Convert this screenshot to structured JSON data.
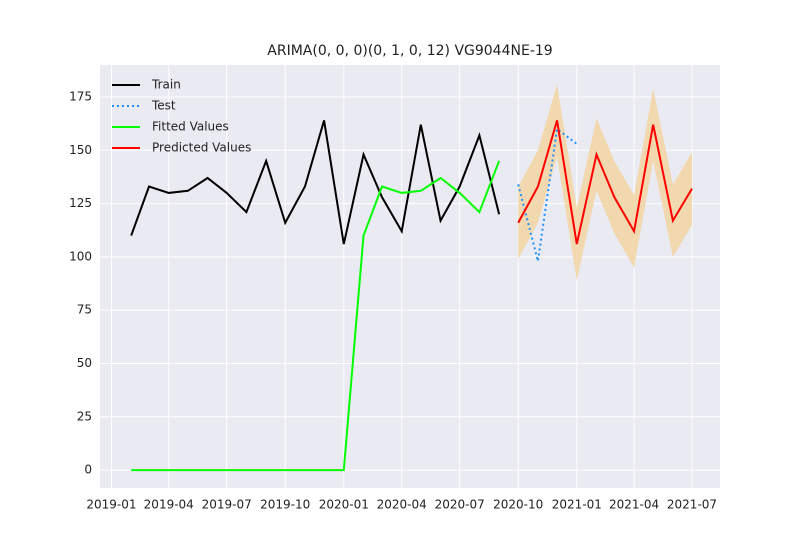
{
  "chart_data": {
    "type": "line",
    "title": "ARIMA(0, 0, 0)(0, 1, 0, 12) VG9044NE-19",
    "xlim": [
      "2018-12-14",
      "2021-08-14"
    ],
    "xticks": [
      "2019-01",
      "2019-04",
      "2019-07",
      "2019-10",
      "2020-01",
      "2020-04",
      "2020-07",
      "2020-10",
      "2021-01",
      "2021-04",
      "2021-07"
    ],
    "ylim": [
      -8.4,
      190
    ],
    "yticks": [
      0,
      25,
      50,
      75,
      100,
      125,
      150,
      175
    ],
    "grid": true,
    "legend": "upper-left",
    "series": [
      {
        "name": "Train",
        "color": "#000000",
        "style": "solid",
        "x": [
          "2019-02",
          "2019-03",
          "2019-04",
          "2019-05",
          "2019-06",
          "2019-07",
          "2019-08",
          "2019-09",
          "2019-10",
          "2019-11",
          "2019-12",
          "2020-01",
          "2020-02",
          "2020-03",
          "2020-04",
          "2020-05",
          "2020-06",
          "2020-07",
          "2020-08",
          "2020-09"
        ],
        "values": [
          110,
          133,
          130,
          131,
          137,
          130,
          121,
          145,
          116,
          133,
          164,
          106,
          148,
          128,
          112,
          162,
          117,
          133,
          157,
          120
        ]
      },
      {
        "name": "Test",
        "color": "#1e90ff",
        "style": "dotted",
        "x": [
          "2020-10",
          "2020-11",
          "2020-12",
          "2021-01"
        ],
        "values": [
          134,
          98,
          160,
          153
        ]
      },
      {
        "name": "Fitted Values",
        "color": "#00ff00",
        "style": "solid",
        "x": [
          "2019-02",
          "2019-03",
          "2019-04",
          "2019-05",
          "2019-06",
          "2019-07",
          "2019-08",
          "2019-09",
          "2019-10",
          "2019-11",
          "2019-12",
          "2020-01",
          "2020-02",
          "2020-03",
          "2020-04",
          "2020-05",
          "2020-06",
          "2020-07",
          "2020-08",
          "2020-09"
        ],
        "values": [
          0,
          0,
          0,
          0,
          0,
          0,
          0,
          0,
          0,
          0,
          0,
          0,
          110,
          133,
          130,
          131,
          137,
          130,
          121,
          145
        ]
      },
      {
        "name": "Predicted Values",
        "color": "#ff0000",
        "style": "solid",
        "x": [
          "2020-10",
          "2020-11",
          "2020-12",
          "2021-01",
          "2021-02",
          "2021-03",
          "2021-04",
          "2021-05",
          "2021-06",
          "2021-07"
        ],
        "values": [
          116,
          133,
          164,
          106,
          148,
          128,
          112,
          162,
          117,
          132
        ]
      }
    ],
    "confidence_interval": {
      "color": "#f3d6a6",
      "x": [
        "2020-10",
        "2020-11",
        "2020-12",
        "2021-01",
        "2021-02",
        "2021-03",
        "2021-04",
        "2021-05",
        "2021-06",
        "2021-07"
      ],
      "lower": [
        99,
        116,
        147,
        89,
        131,
        111,
        95,
        145,
        100,
        115
      ],
      "upper": [
        133,
        150,
        181,
        123,
        165,
        145,
        129,
        179,
        134,
        149
      ]
    }
  }
}
